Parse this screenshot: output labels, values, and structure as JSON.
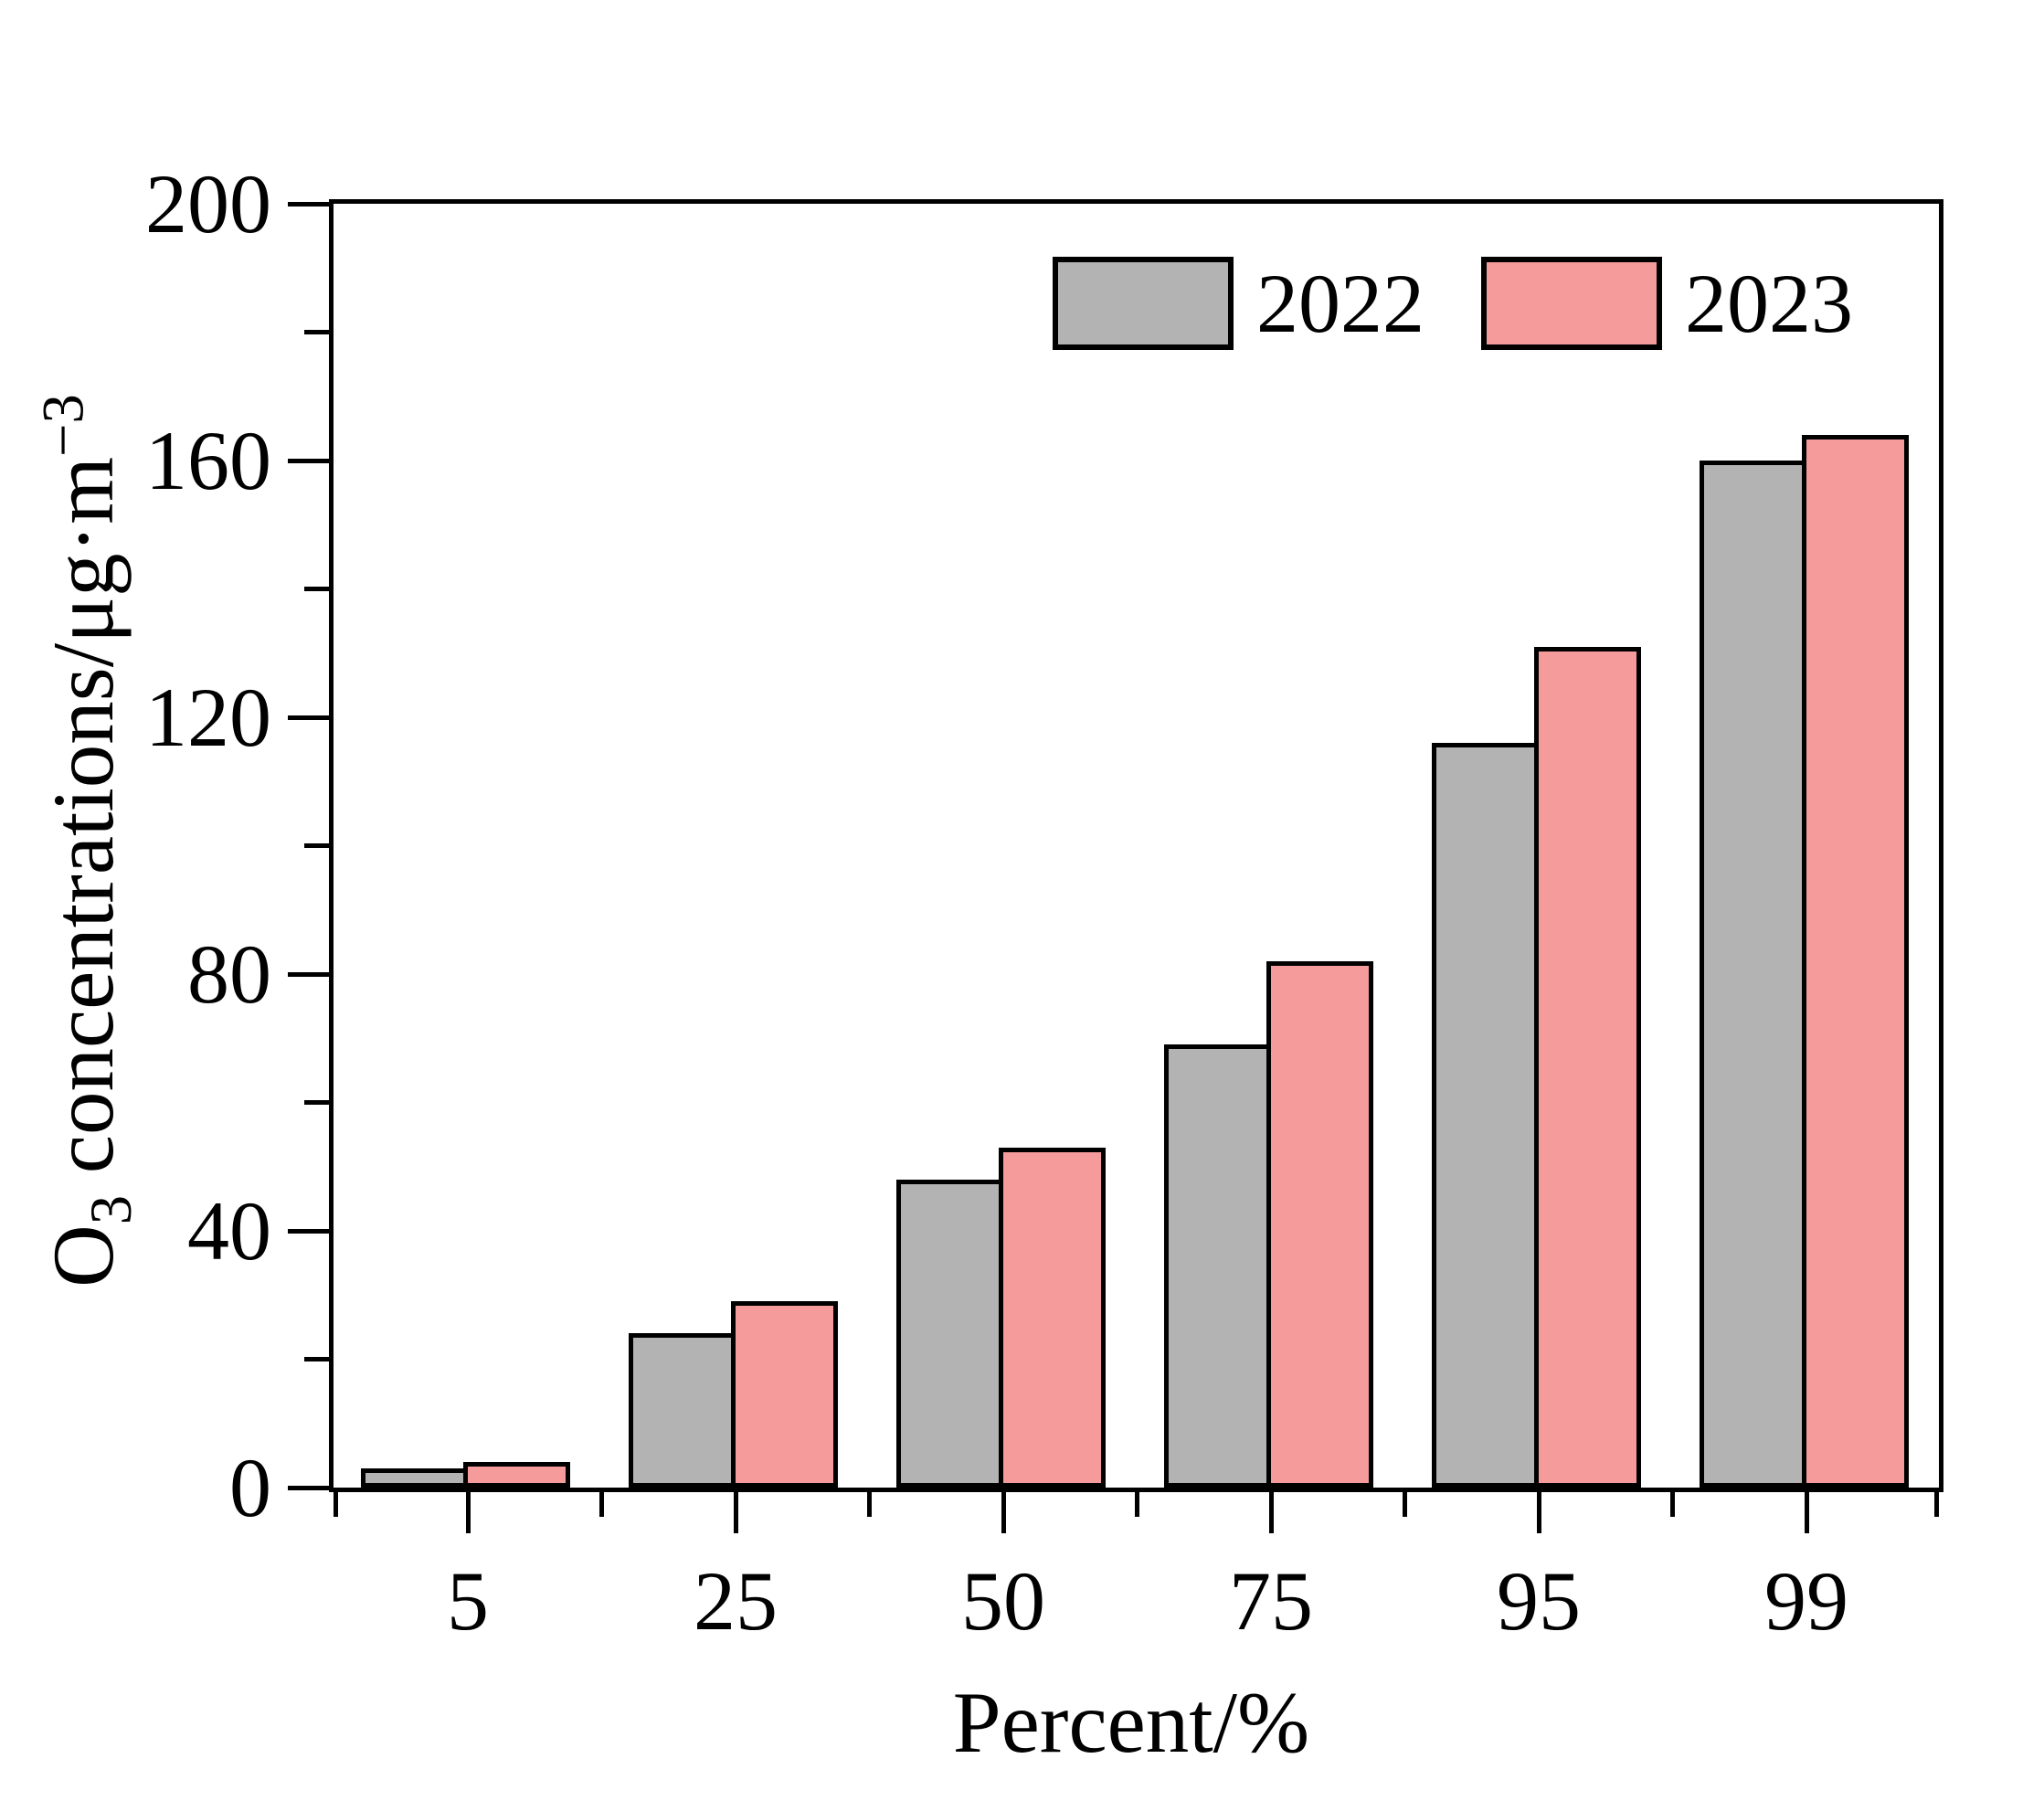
{
  "chart_data": {
    "type": "bar",
    "title": "",
    "categories": [
      "5",
      "25",
      "50",
      "75",
      "95",
      "99"
    ],
    "series": [
      {
        "name": "2022",
        "color": "#b3b3b3",
        "values": [
          3,
          24,
          48,
          69,
          116,
          160
        ]
      },
      {
        "name": "2023",
        "color": "#f59b9b",
        "values": [
          4,
          29,
          53,
          82,
          131,
          164
        ]
      }
    ],
    "xlabel": "Percent/%",
    "ylabel": {
      "pre": "O",
      "sub": "3",
      "mid": " concentrations/μg·m",
      "sup": "−3"
    },
    "ylim": [
      0,
      200
    ],
    "yticks": [
      0,
      40,
      80,
      120,
      160,
      200
    ],
    "yminorticks": [
      20,
      60,
      100,
      140,
      180
    ],
    "grid": false,
    "legend_position": "top-center-inside",
    "bar_border_color": "#000000",
    "axis_color": "#000000"
  }
}
